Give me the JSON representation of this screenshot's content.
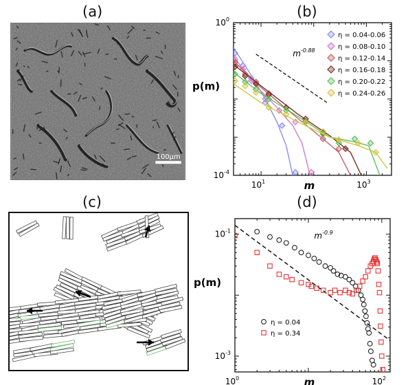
{
  "panels": {
    "a": {
      "label": "(a)",
      "scale_bar": "100µm"
    },
    "b": {
      "label": "(b)"
    },
    "c": {
      "label": "(c)"
    },
    "d": {
      "label": "(d)"
    }
  },
  "chart_data": [
    {
      "panel": "b",
      "type": "scatter",
      "scale": "log-log",
      "xlabel": "m",
      "ylabel": "p(m)",
      "xlim": [
        3,
        3000
      ],
      "ylim": [
        0.0001,
        1
      ],
      "x_ticks": [
        {
          "value": 10,
          "label": "10",
          "exp": "1"
        },
        {
          "value": 1000,
          "label": "10",
          "exp": "3"
        }
      ],
      "y_ticks": [
        {
          "value": 1,
          "label": "10",
          "exp": "0"
        },
        {
          "value": 0.0001,
          "label": "10",
          "exp": "-4"
        }
      ],
      "annotation": {
        "base": "m",
        "exp": "-0.88"
      },
      "legend_position": "top-right",
      "series": [
        {
          "name": "η = 0.04-0.06",
          "color": "#8a8cf0",
          "points": [
            [
              3.2,
              0.16
            ],
            [
              4.5,
              0.075
            ],
            [
              6.5,
              0.035
            ],
            [
              12,
              0.008
            ],
            [
              25,
              0.002
            ],
            [
              45,
              0.00012
            ]
          ],
          "fit": [
            [
              3,
              0.22
            ],
            [
              6,
              0.05
            ],
            [
              12,
              0.01
            ],
            [
              20,
              0.0025
            ],
            [
              30,
              0.0006
            ],
            [
              40,
              0.0001
            ]
          ]
        },
        {
          "name": "η = 0.08-0.10",
          "color": "#d47ac9",
          "points": [
            [
              3.2,
              0.11
            ],
            [
              4.5,
              0.06
            ],
            [
              6.5,
              0.03
            ],
            [
              12,
              0.01
            ],
            [
              22,
              0.005
            ],
            [
              45,
              0.0025
            ],
            [
              90,
              0.00012
            ]
          ],
          "fit": [
            [
              3,
              0.13
            ],
            [
              8,
              0.022
            ],
            [
              20,
              0.006
            ],
            [
              40,
              0.002
            ],
            [
              60,
              0.0007
            ],
            [
              85,
              0.0001
            ]
          ]
        },
        {
          "name": "η = 0.12-0.14",
          "color": "#c06068",
          "points": [
            [
              3.2,
              0.09
            ],
            [
              5,
              0.045
            ],
            [
              8,
              0.028
            ],
            [
              14,
              0.014
            ],
            [
              30,
              0.006
            ],
            [
              70,
              0.0026
            ],
            [
              150,
              0.0009
            ],
            [
              300,
              0.0005
            ]
          ],
          "fit": [
            [
              3,
              0.1
            ],
            [
              10,
              0.02
            ],
            [
              40,
              0.004
            ],
            [
              150,
              0.0009
            ],
            [
              300,
              0.0004
            ],
            [
              500,
              0.0001
            ]
          ]
        },
        {
          "name": "η = 0.16-0.18",
          "color": "#7a2e22",
          "points": [
            [
              3.2,
              0.07
            ],
            [
              5,
              0.04
            ],
            [
              8,
              0.025
            ],
            [
              14,
              0.013
            ],
            [
              30,
              0.006
            ],
            [
              70,
              0.003
            ],
            [
              150,
              0.0013
            ],
            [
              400,
              0.0005
            ]
          ],
          "fit": [
            [
              3,
              0.08
            ],
            [
              10,
              0.022
            ],
            [
              50,
              0.004
            ],
            [
              200,
              0.0011
            ],
            [
              500,
              0.0004
            ],
            [
              800,
              0.0001
            ]
          ]
        },
        {
          "name": "η = 0.20-0.22",
          "color": "#5dbf5d",
          "points": [
            [
              3.2,
              0.045
            ],
            [
              5,
              0.028
            ],
            [
              8,
              0.018
            ],
            [
              14,
              0.01
            ],
            [
              30,
              0.005
            ],
            [
              70,
              0.0025
            ],
            [
              150,
              0.0012
            ],
            [
              300,
              0.0007
            ],
            [
              600,
              0.0009
            ],
            [
              1200,
              0.0007
            ]
          ],
          "fit": [
            [
              3,
              0.05
            ],
            [
              10,
              0.014
            ],
            [
              50,
              0.0035
            ],
            [
              200,
              0.001
            ],
            [
              600,
              0.00075
            ],
            [
              1100,
              0.0006
            ],
            [
              1800,
              0.0001
            ]
          ]
        },
        {
          "name": "η = 0.24-0.26",
          "color": "#d0c642",
          "points": [
            [
              3.2,
              0.03
            ],
            [
              5,
              0.022
            ],
            [
              8,
              0.015
            ],
            [
              14,
              0.006
            ],
            [
              30,
              0.004
            ],
            [
              70,
              0.0024
            ],
            [
              150,
              0.0014
            ],
            [
              300,
              0.00085
            ],
            [
              700,
              0.0007
            ],
            [
              1500,
              0.0004
            ]
          ],
          "fit": [
            [
              3,
              0.025
            ],
            [
              10,
              0.008
            ],
            [
              50,
              0.0025
            ],
            [
              200,
              0.001
            ],
            [
              700,
              0.0006
            ],
            [
              1500,
              0.0004
            ],
            [
              2500,
              0.00015
            ]
          ]
        }
      ],
      "reference_line": [
        [
          8,
          0.15
        ],
        [
          180,
          0.008
        ]
      ]
    },
    {
      "panel": "d",
      "type": "scatter",
      "scale": "log-log",
      "xlabel": "m",
      "ylabel": "p(m)",
      "xlim": [
        1,
        130
      ],
      "ylim": [
        0.00055,
        0.18
      ],
      "x_ticks": [
        {
          "value": 1,
          "label": "10",
          "exp": "0"
        },
        {
          "value": 100,
          "label": "10",
          "exp": "2"
        }
      ],
      "y_ticks": [
        {
          "value": 0.1,
          "label": "10",
          "exp": "-1"
        },
        {
          "value": 0.001,
          "label": "10",
          "exp": "-3"
        }
      ],
      "annotation": {
        "base": "m",
        "exp": "-0.9"
      },
      "legend_position": "bottom-left",
      "fit_line": [
        [
          1,
          0.14
        ],
        [
          130,
          0.0018
        ]
      ],
      "series": [
        {
          "name": "η = 0.04",
          "color": "#222222",
          "marker": "circle",
          "points": [
            [
              2,
              0.11
            ],
            [
              3,
              0.09
            ],
            [
              4,
              0.08
            ],
            [
              5,
              0.072
            ],
            [
              6.5,
              0.06
            ],
            [
              8,
              0.05
            ],
            [
              10,
              0.045
            ],
            [
              12,
              0.04
            ],
            [
              14,
              0.035
            ],
            [
              17,
              0.03
            ],
            [
              20,
              0.028
            ],
            [
              22,
              0.025
            ],
            [
              25,
              0.022
            ],
            [
              28,
              0.021
            ],
            [
              32,
              0.02
            ],
            [
              36,
              0.018
            ],
            [
              40,
              0.016
            ],
            [
              44,
              0.014
            ],
            [
              48,
              0.012
            ],
            [
              52,
              0.01
            ],
            [
              55,
              0.0085
            ],
            [
              57,
              0.007
            ],
            [
              59,
              0.0055
            ],
            [
              61,
              0.0045
            ],
            [
              63,
              0.0035
            ],
            [
              65,
              0.0028
            ],
            [
              67,
              0.0024
            ],
            [
              69,
              0.0016
            ],
            [
              71,
              0.0012
            ],
            [
              74,
              0.00085
            ],
            [
              77,
              0.00072
            ]
          ]
        },
        {
          "name": "η = 0.34",
          "color": "#e83030",
          "marker": "square",
          "points": [
            [
              1,
              0.095
            ],
            [
              2,
              0.05
            ],
            [
              3,
              0.03
            ],
            [
              4,
              0.022
            ],
            [
              5,
              0.02
            ],
            [
              6,
              0.018
            ],
            [
              8,
              0.016
            ],
            [
              10,
              0.015
            ],
            [
              11,
              0.014
            ],
            [
              13,
              0.013
            ],
            [
              16,
              0.012
            ],
            [
              20,
              0.011
            ],
            [
              23,
              0.012
            ],
            [
              27,
              0.011
            ],
            [
              32,
              0.012
            ],
            [
              36,
              0.011
            ],
            [
              40,
              0.0105
            ],
            [
              45,
              0.012
            ],
            [
              50,
              0.014
            ],
            [
              55,
              0.017
            ],
            [
              60,
              0.02
            ],
            [
              65,
              0.025
            ],
            [
              70,
              0.03
            ],
            [
              74,
              0.033
            ],
            [
              77,
              0.036
            ],
            [
              79,
              0.039
            ],
            [
              81,
              0.041
            ],
            [
              83,
              0.038
            ],
            [
              85,
              0.035
            ],
            [
              87,
              0.033
            ],
            [
              89,
              0.025
            ],
            [
              91,
              0.015
            ],
            [
              93,
              0.011
            ],
            [
              95,
              0.0055
            ],
            [
              96,
              0.0031
            ],
            [
              98,
              0.0017
            ],
            [
              100,
              0.001
            ],
            [
              103,
              0.0006
            ]
          ]
        }
      ]
    }
  ]
}
